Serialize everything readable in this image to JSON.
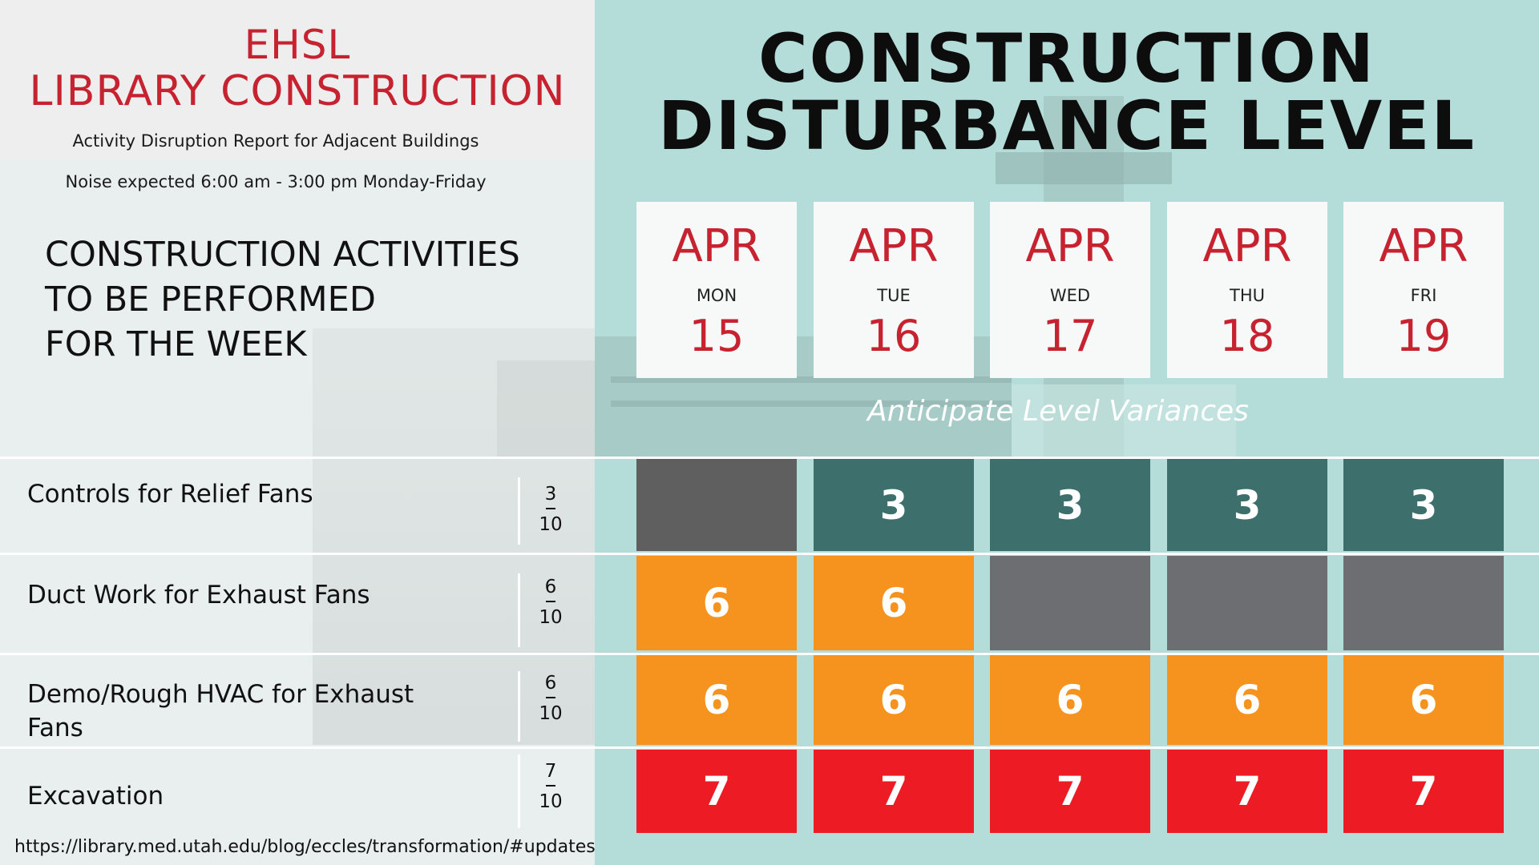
{
  "header": {
    "brand_line_1": "EHSL",
    "brand_line_2": "LIBRARY CONSTRUCTION",
    "subtitle": "Activity Disruption Report for Adjacent Buildings",
    "noise_note": "Noise expected 6:00 am - 3:00 pm Monday-Friday",
    "title_line_1": "CONSTRUCTION",
    "title_line_2": "DISTURBANCE LEVEL"
  },
  "activities_heading": {
    "line_1": "CONSTRUCTION ACTIVITIES",
    "line_2": "TO BE PERFORMED",
    "line_3": "FOR THE WEEK"
  },
  "days": [
    {
      "month": "APR",
      "weekday": "MON",
      "date": "15"
    },
    {
      "month": "APR",
      "weekday": "TUE",
      "date": "16"
    },
    {
      "month": "APR",
      "weekday": "WED",
      "date": "17"
    },
    {
      "month": "APR",
      "weekday": "THU",
      "date": "18"
    },
    {
      "month": "APR",
      "weekday": "FRI",
      "date": "19"
    }
  ],
  "variance_note": "Anticipate Level Variances",
  "activities": [
    {
      "name": "Controls for Relief Fans",
      "level": "3",
      "max": "10",
      "cells": [
        "",
        "3",
        "3",
        "3",
        "3"
      ],
      "cell_colors": [
        "#5f5f60",
        "#3d6f6d",
        "#3d6f6d",
        "#3d6f6d",
        "#3d6f6d"
      ]
    },
    {
      "name": "Duct Work for Exhaust Fans",
      "level": "6",
      "max": "10",
      "cells": [
        "6",
        "6",
        "",
        "",
        ""
      ],
      "cell_colors": [
        "#f6931e",
        "#f6931e",
        "#6d6e71",
        "#6d6e71",
        "#6d6e71"
      ]
    },
    {
      "name": "Demo/Rough HVAC for Exhaust Fans",
      "level": "6",
      "max": "10",
      "cells": [
        "6",
        "6",
        "6",
        "6",
        "6"
      ],
      "cell_colors": [
        "#f6931e",
        "#f6931e",
        "#f6931e",
        "#f6931e",
        "#f6931e"
      ]
    },
    {
      "name": "Excavation",
      "level": "7",
      "max": "10",
      "cells": [
        "7",
        "7",
        "7",
        "7",
        "7"
      ],
      "cell_colors": [
        "#ed1c24",
        "#ed1c24",
        "#ed1c24",
        "#ed1c24",
        "#ed1c24"
      ]
    }
  ],
  "footer": {
    "url": "https://library.med.utah.edu/blog/eccles/transformation/#updates"
  },
  "colors": {
    "brand_red": "#c6222f",
    "panel_teal": "#b4dcd8",
    "level_3": "#3d6f6d",
    "level_6": "#f6931e",
    "level_7": "#ed1c24",
    "inactive": "#6d6e71"
  }
}
